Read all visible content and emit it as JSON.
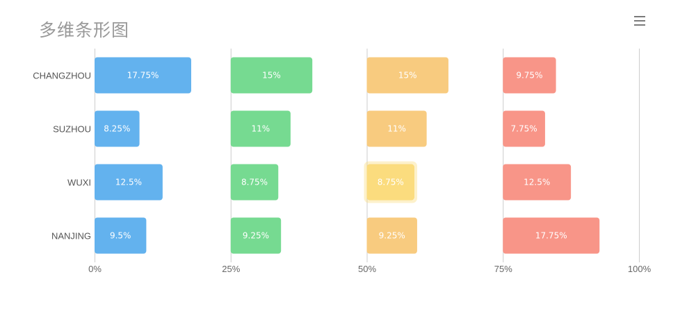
{
  "title": "多维条形图",
  "toolbar": {
    "menu_icon": "hamburger-menu-icon"
  },
  "chart_data": {
    "type": "bar",
    "orientation": "horizontal",
    "title": "多维条形图",
    "categories": [
      "CHANGZHOU",
      "SUZHOU",
      "WUXI",
      "NANJING"
    ],
    "series": [
      {
        "color": "#63b2ee",
        "values": [
          17.75,
          8.25,
          12.5,
          9.5
        ],
        "labels": [
          "17.75%",
          "8.25%",
          "12.5%",
          "9.5%"
        ]
      },
      {
        "color": "#76da91",
        "values": [
          15,
          11,
          8.75,
          9.25
        ],
        "labels": [
          "15%",
          "11%",
          "8.75%",
          "9.25%"
        ]
      },
      {
        "color": "#f8cb7f",
        "values": [
          15,
          11,
          8.75,
          9.25
        ],
        "labels": [
          "15%",
          "11%",
          "8.75%",
          "9.25%"
        ]
      },
      {
        "color": "#f89588",
        "values": [
          9.75,
          7.75,
          12.5,
          17.75
        ],
        "labels": [
          "9.75%",
          "7.75%",
          "12.5%",
          "17.75%"
        ]
      }
    ],
    "highlight": {
      "series": 2,
      "category": 2,
      "color": "#fbdc7e"
    },
    "xticks": [
      "0%",
      "25%",
      "50%",
      "75%",
      "100%"
    ],
    "xlim": [
      0,
      100
    ],
    "panel_range": 25,
    "grid": true
  }
}
